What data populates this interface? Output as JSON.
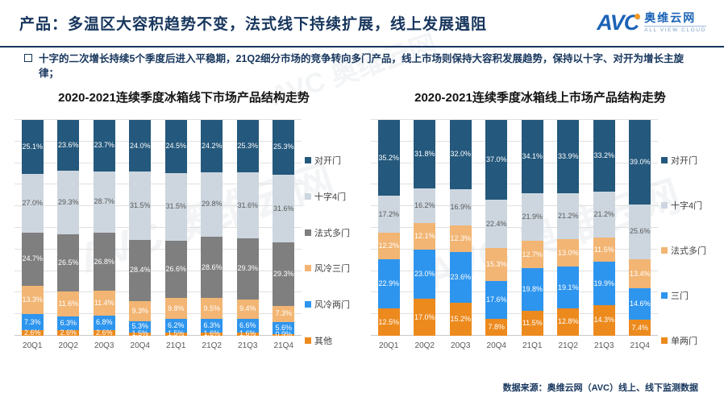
{
  "header": {
    "title": "产品：多温区大容积趋势不变，法式线下持续扩展，线上发展遇阻",
    "logo": {
      "brand": "AVC",
      "name": "奥维云网",
      "tagline": "ALL VIEW CLOUD"
    }
  },
  "bullet": {
    "text": "十字的二次增长持续5个季度后进入平稳期，21Q2细分市场的竞争转向多门产品，线上市场则保持大容积发展趋势，保持以十字、对开为增长主旋律；"
  },
  "watermark": "AVC 奥维云网",
  "footer": {
    "source": "数据来源：奥维云网（AVC）线上、线下监测数据"
  },
  "colors": {
    "navy": "#24587C",
    "light_gray_blue": "#CDD6DF",
    "dark_gray": "#7F7F7F",
    "tan": "#F2B573",
    "bright_blue": "#2E95EE",
    "orange": "#EC8A1E",
    "accent_text": "#17365D",
    "brand_blue": "#1B63B7",
    "brand_orange": "#F59A23"
  },
  "chart_data": [
    {
      "type": "bar",
      "stacked": true,
      "title": "2020-2021连续季度冰箱线下市场产品结构走势",
      "categories": [
        "20Q1",
        "20Q2",
        "20Q3",
        "20Q4",
        "21Q1",
        "21Q2",
        "21Q3",
        "21Q4"
      ],
      "value_suffix": "%",
      "ylim": [
        0,
        100
      ],
      "grid": true,
      "legend_position": "right",
      "series": [
        {
          "name": "对开门",
          "color": "#24587C",
          "label_color": "#ffffff",
          "values": [
            25.1,
            23.6,
            23.7,
            24.0,
            24.5,
            24.2,
            25.3,
            25.3
          ]
        },
        {
          "name": "十字4门",
          "color": "#CDD6DF",
          "label_color": "#595959",
          "values": [
            27.0,
            29.3,
            28.7,
            31.5,
            31.5,
            29.8,
            31.6,
            31.6
          ]
        },
        {
          "name": "法式多门",
          "color": "#7F7F7F",
          "label_color": "#ffffff",
          "values": [
            24.7,
            26.5,
            26.8,
            28.4,
            26.6,
            28.6,
            29.3,
            29.3
          ]
        },
        {
          "name": "风冷三门",
          "color": "#F2B573",
          "label_color": "#ffffff",
          "values": [
            13.3,
            11.6,
            11.4,
            9.3,
            9.8,
            9.5,
            9.4,
            7.3
          ]
        },
        {
          "name": "风冷两门",
          "color": "#2E95EE",
          "label_color": "#ffffff",
          "values": [
            7.3,
            6.3,
            6.8,
            5.3,
            6.2,
            6.3,
            6.6,
            5.6
          ]
        },
        {
          "name": "其他",
          "color": "#EC8A1E",
          "label_color": "#ffffff",
          "values": [
            2.6,
            2.6,
            2.6,
            1.5,
            1.5,
            1.6,
            1.6,
            0.9
          ]
        }
      ]
    },
    {
      "type": "bar",
      "stacked": true,
      "title": "2020-2021连续季度冰箱线上市场产品结构走势",
      "categories": [
        "20Q1",
        "20Q2",
        "20Q3",
        "20Q4",
        "21Q1",
        "21Q2",
        "21Q3",
        "21Q4"
      ],
      "value_suffix": "%",
      "ylim": [
        0,
        100
      ],
      "grid": true,
      "legend_position": "right",
      "series": [
        {
          "name": "对开门",
          "color": "#24587C",
          "label_color": "#ffffff",
          "values": [
            35.2,
            31.8,
            32.0,
            37.0,
            34.1,
            33.9,
            33.2,
            39.0
          ]
        },
        {
          "name": "十字4门",
          "color": "#CDD6DF",
          "label_color": "#595959",
          "values": [
            17.2,
            16.2,
            16.9,
            22.4,
            21.9,
            21.2,
            21.2,
            25.6
          ]
        },
        {
          "name": "法式多门",
          "color": "#F2B573",
          "label_color": "#ffffff",
          "values": [
            12.2,
            12.1,
            12.3,
            15.3,
            12.7,
            13.0,
            11.5,
            13.4
          ]
        },
        {
          "name": "三门",
          "color": "#2E95EE",
          "label_color": "#ffffff",
          "values": [
            22.9,
            23.0,
            23.6,
            17.6,
            19.8,
            19.1,
            19.9,
            14.6
          ]
        },
        {
          "name": "单两门",
          "color": "#EC8A1E",
          "label_color": "#ffffff",
          "values": [
            12.5,
            17.0,
            15.2,
            7.8,
            11.5,
            12.8,
            14.3,
            7.4
          ]
        }
      ]
    }
  ]
}
